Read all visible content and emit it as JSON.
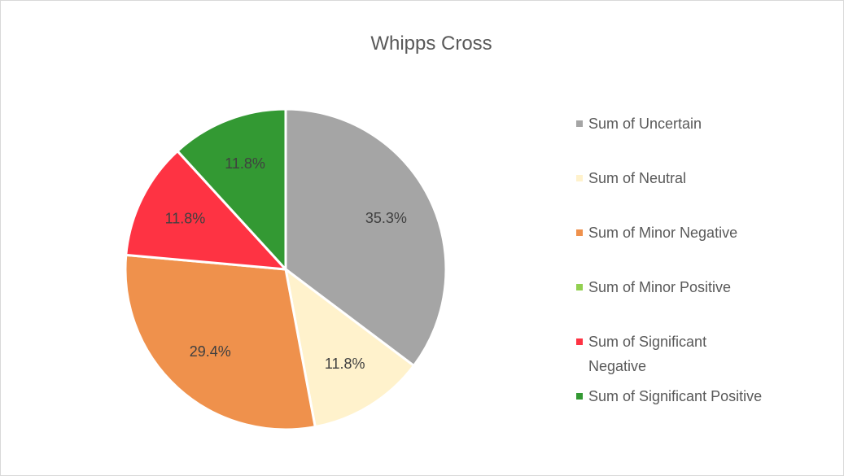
{
  "chart_data": {
    "type": "pie",
    "title": "Whipps Cross",
    "categories": [
      "Sum of Uncertain",
      "Sum of Neutral",
      "Sum of Minor Negative",
      "Sum of Minor Positive",
      "Sum of Significant Negative",
      "Sum of Significant Positive"
    ],
    "values": [
      35.3,
      11.8,
      29.4,
      0,
      11.8,
      11.8
    ],
    "value_labels": [
      "35.3%",
      "11.8%",
      "29.4%",
      null,
      "11.8%",
      "11.8%"
    ],
    "colors": [
      "#a5a5a5",
      "#fff2cc",
      "#ef914c",
      "#92d050",
      "#fe3343",
      "#339933"
    ],
    "legend": "right"
  }
}
